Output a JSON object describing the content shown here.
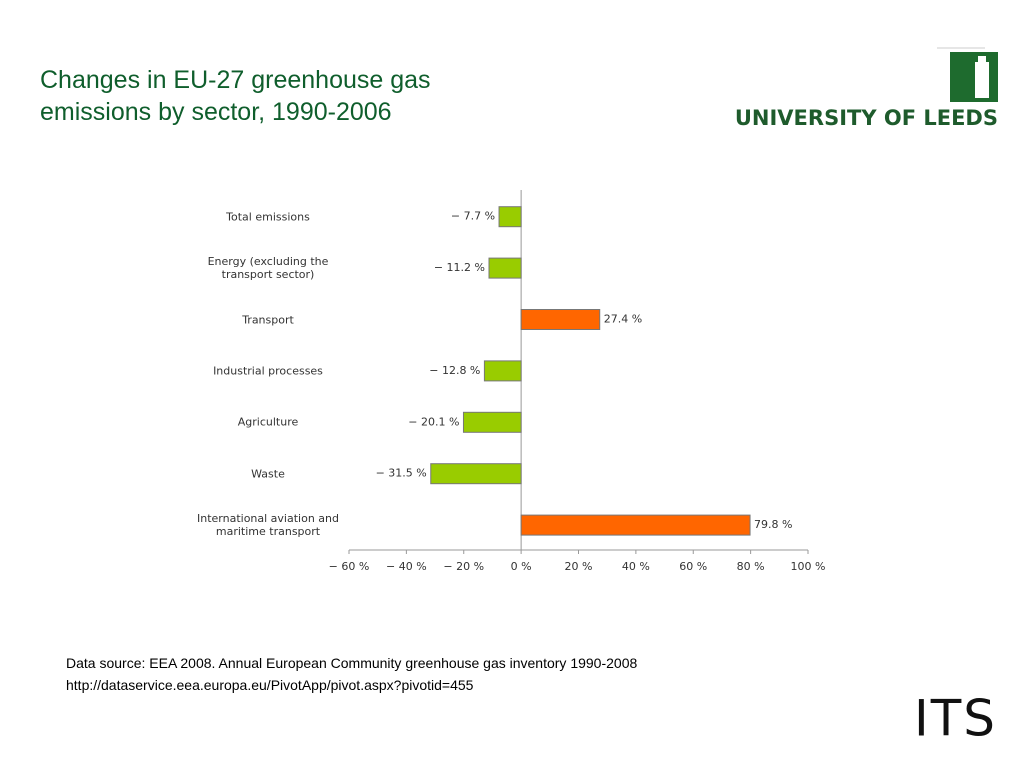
{
  "title": "Changes in EU-27 greenhouse gas\nemissions by sector, 1990-2006",
  "logo": "UNIVERSITY OF LEEDS",
  "footer_logo": "ITS",
  "source": [
    "Data source: EEA 2008.  Annual European Community greenhouse gas inventory 1990-2008",
    "http://dataservice.eea.europa.eu/PivotApp/pivot.aspx?pivotid=455"
  ],
  "chart_data": {
    "type": "bar",
    "orientation": "horizontal",
    "categories": [
      "Total emissions",
      "Energy (excluding the\ntransport sector)",
      "Transport",
      "Industrial processes",
      "Agriculture",
      "Waste",
      "International aviation and\nmaritime transport"
    ],
    "values": [
      -7.7,
      -11.2,
      27.4,
      -12.8,
      -20.1,
      -31.5,
      79.8
    ],
    "value_labels": [
      "− 7.7 %",
      "− 11.2 %",
      "27.4 %",
      "− 12.8 %",
      "− 20.1 %",
      "− 31.5 %",
      "79.8 %"
    ],
    "colors": [
      "#99cc00",
      "#99cc00",
      "#ff6600",
      "#99cc00",
      "#99cc00",
      "#99cc00",
      "#ff6600"
    ],
    "xlim": [
      -60,
      100
    ],
    "xticks": [
      {
        "value": -60,
        "label": "− 60 %"
      },
      {
        "value": -40,
        "label": "− 40 %"
      },
      {
        "value": -20,
        "label": "− 20 %"
      },
      {
        "value": 0,
        "label": "0 %"
      },
      {
        "value": 20,
        "label": "20 %"
      },
      {
        "value": 40,
        "label": "40 %"
      },
      {
        "value": 60,
        "label": "60 %"
      },
      {
        "value": 80,
        "label": "80 %"
      },
      {
        "value": 100,
        "label": "100 %"
      }
    ]
  }
}
